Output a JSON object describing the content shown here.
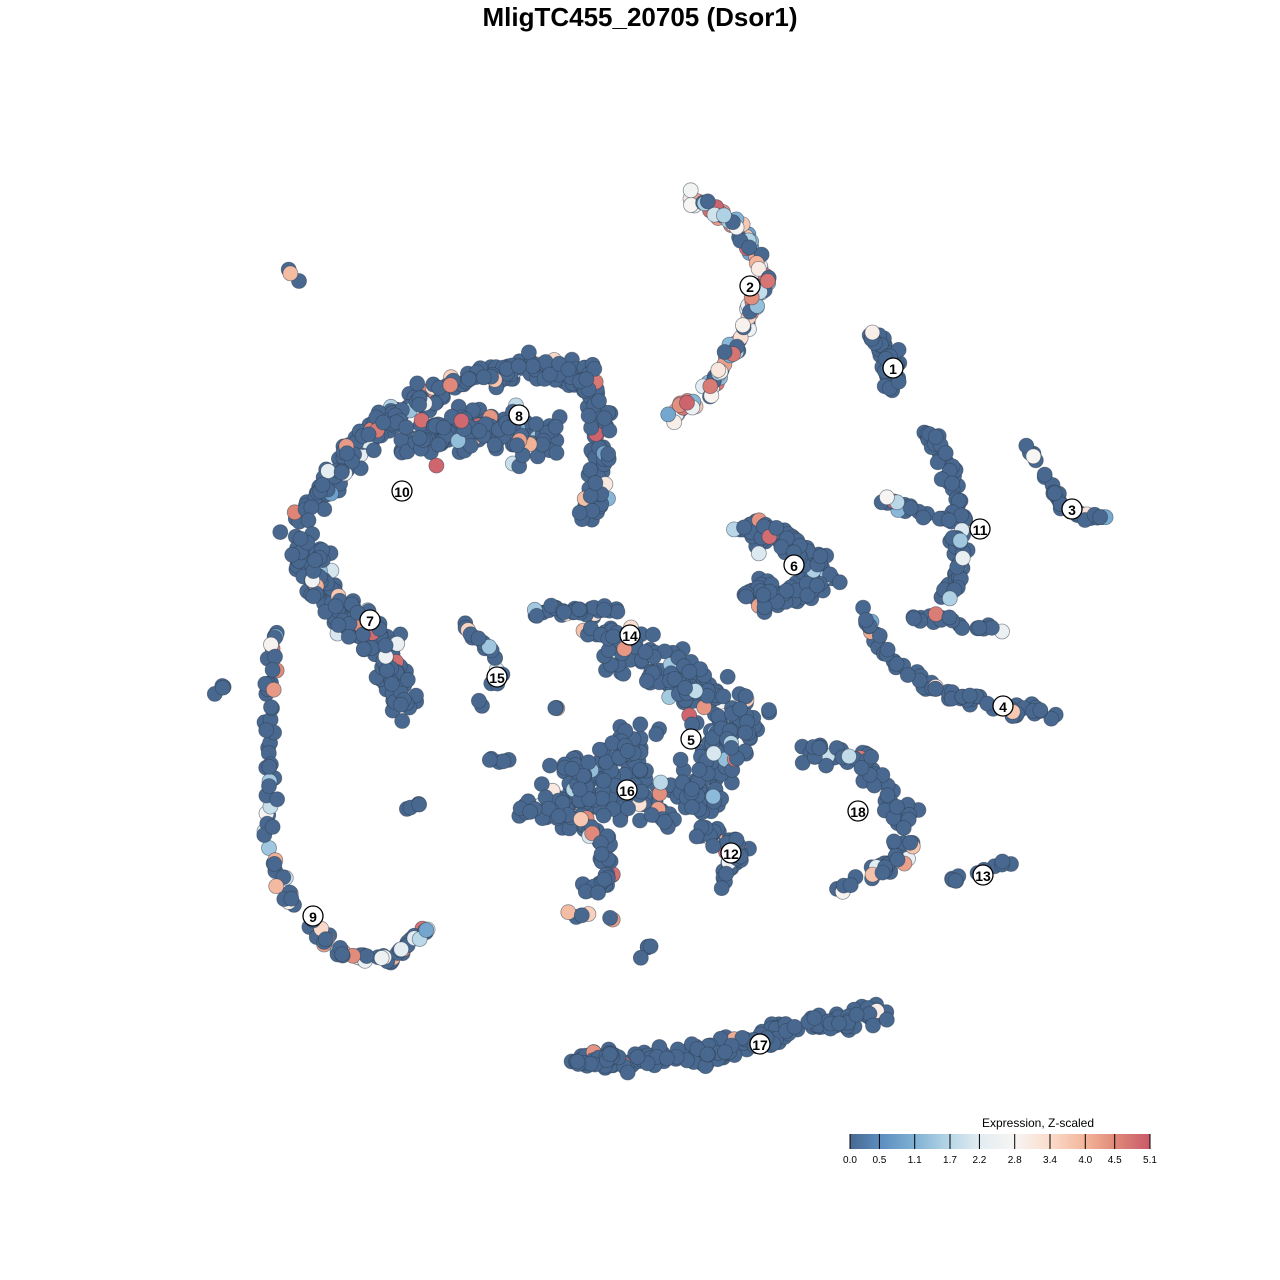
{
  "chart_data": {
    "type": "scatter",
    "title": "MligTC455_20705 (Dsor1)",
    "xlabel": "",
    "ylabel": "",
    "grid": false,
    "axes_visible": false,
    "legend": {
      "title": "Expression, Z-scaled",
      "placement": "bottom-right",
      "ticks": [
        "0.0",
        "0.5",
        "1.1",
        "1.7",
        "2.2",
        "2.8",
        "3.4",
        "4.0",
        "4.5",
        "5.1"
      ],
      "range": [
        0.0,
        5.1
      ],
      "colors": [
        "#486890",
        "#5b8dbf",
        "#80b1d4",
        "#b8d7e7",
        "#e2ecf2",
        "#f7f5f3",
        "#fbdccb",
        "#f3b59a",
        "#e08a7a",
        "#c9596a"
      ]
    },
    "clusters": [
      {
        "label": "1",
        "x": 23.3,
        "y": 28.2
      },
      {
        "label": "2",
        "x": 9.0,
        "y": 36.4
      },
      {
        "label": "3",
        "x": 41.2,
        "y": 14.1
      },
      {
        "label": "4",
        "x": 34.3,
        "y": -5.6
      },
      {
        "label": "5",
        "x": 3.1,
        "y": -8.9
      },
      {
        "label": "6",
        "x": 13.4,
        "y": 8.5
      },
      {
        "label": "7",
        "x": -29.0,
        "y": 3.0
      },
      {
        "label": "8",
        "x": -14.1,
        "y": 23.5
      },
      {
        "label": "9",
        "x": -34.7,
        "y": -26.6
      },
      {
        "label": "10",
        "x": -25.8,
        "y": 15.9
      },
      {
        "label": "11",
        "x": 32.0,
        "y": 12.1
      },
      {
        "label": "12",
        "x": 7.1,
        "y": -20.3
      },
      {
        "label": "13",
        "x": 32.3,
        "y": -22.5
      },
      {
        "label": "14",
        "x": -3.0,
        "y": 1.5
      },
      {
        "label": "15",
        "x": -16.3,
        "y": -2.7
      },
      {
        "label": "16",
        "x": -3.3,
        "y": -14.0
      },
      {
        "label": "17",
        "x": 10.0,
        "y": -39.4
      },
      {
        "label": "18",
        "x": 19.8,
        "y": -16.1
      }
    ]
  }
}
